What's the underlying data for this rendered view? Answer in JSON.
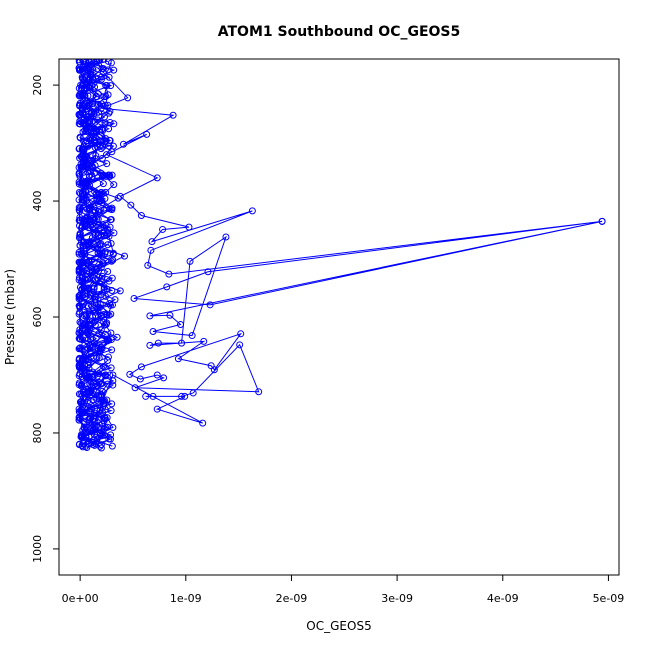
{
  "chart_data": {
    "type": "line",
    "title": "ATOM1 Southbound OC_GEOS5",
    "xlabel": "OC_GEOS5",
    "ylabel": "Pressure (mbar)",
    "xlim": [
      -2e-10,
      5.1e-09
    ],
    "ylim": [
      1045,
      155
    ],
    "y_inverted": true,
    "x_ticks": [
      0,
      1e-09,
      2e-09,
      3e-09,
      4e-09,
      5e-09
    ],
    "x_tick_labels": [
      "0e+00",
      "1e-09",
      "2e-09",
      "3e-09",
      "4e-09",
      "5e-09"
    ],
    "y_ticks": [
      200,
      400,
      600,
      800,
      1000
    ],
    "y_tick_labels": [
      "200",
      "400",
      "600",
      "800",
      "1000"
    ],
    "series_color": "#0000ff",
    "marker": "open-circle",
    "grid": false,
    "legend": "none",
    "series": [
      {
        "points": [
          [
            8e-11,
            160
          ],
          [
            4e-11,
            175
          ],
          [
            1.2e-10,
            190
          ],
          [
            6e-11,
            205
          ],
          [
            1.5e-10,
            220
          ],
          [
            2e-11,
            240
          ],
          [
            1e-10,
            255
          ],
          [
            5e-11,
            270
          ],
          [
            1.8e-10,
            290
          ],
          [
            3e-11,
            310
          ],
          [
            1.1e-10,
            330
          ],
          [
            7e-11,
            350
          ],
          [
            2.2e-10,
            370
          ],
          [
            4e-11,
            390
          ],
          [
            1.3e-10,
            410
          ],
          [
            6e-11,
            430
          ],
          [
            2.6e-10,
            450
          ],
          [
            9e-11,
            470
          ],
          [
            1.7e-10,
            490
          ],
          [
            3e-11,
            510
          ],
          [
            2.1e-10,
            530
          ],
          [
            8e-11,
            550
          ],
          [
            3.3e-10,
            570
          ],
          [
            1.2e-10,
            590
          ],
          [
            5e-11,
            610
          ],
          [
            2.4e-10,
            630
          ],
          [
            9e-11,
            650
          ],
          [
            1.6e-10,
            670
          ],
          [
            4e-11,
            690
          ],
          [
            2.8e-10,
            700
          ],
          [
            1.1e-10,
            720
          ],
          [
            6e-11,
            740
          ],
          [
            1.9e-10,
            760
          ],
          [
            1e-10,
            775
          ],
          [
            1.4e-10,
            790
          ],
          [
            2e-10,
            805
          ],
          [
            1.2e-10,
            820
          ]
        ]
      },
      {
        "points": [
          [
            5e-11,
            165
          ],
          [
            1e-10,
            180
          ],
          [
            3e-11,
            200
          ],
          [
            1.7e-10,
            215
          ],
          [
            8e-11,
            235
          ],
          [
            2.3e-10,
            255
          ],
          [
            6e-11,
            275
          ],
          [
            1.4e-10,
            295
          ],
          [
            3e-10,
            315
          ],
          [
            1e-10,
            335
          ],
          [
            2.7e-10,
            355
          ],
          [
            5e-11,
            375
          ],
          [
            3.6e-10,
            395
          ],
          [
            1.8e-10,
            415
          ],
          [
            9e-11,
            435
          ],
          [
            3.2e-10,
            455
          ],
          [
            1.3e-10,
            475
          ],
          [
            4.2e-10,
            495
          ],
          [
            2e-10,
            515
          ],
          [
            7e-11,
            535
          ],
          [
            3.8e-10,
            555
          ],
          [
            1.5e-10,
            575
          ],
          [
            2.9e-10,
            595
          ],
          [
            1e-10,
            615
          ],
          [
            3.5e-10,
            635
          ],
          [
            1.7e-10,
            655
          ],
          [
            2.6e-10,
            675
          ],
          [
            1.2e-10,
            695
          ],
          [
            3.1e-10,
            710
          ],
          [
            8e-11,
            730
          ],
          [
            2.2e-10,
            750
          ],
          [
            1.5e-10,
            770
          ],
          [
            2.1e-10,
            785
          ],
          [
            1.9e-10,
            800
          ]
        ]
      },
      {
        "points": [
          [
            9e-11,
            160
          ],
          [
            2.2e-10,
            178
          ],
          [
            4.5e-10,
            222
          ],
          [
            2e-10,
            240
          ],
          [
            8.8e-10,
            252
          ],
          [
            4.1e-10,
            302
          ],
          [
            6.3e-10,
            285
          ],
          [
            2.5e-10,
            320
          ],
          [
            7.3e-10,
            360
          ],
          [
            3.8e-10,
            392
          ],
          [
            4.8e-10,
            407
          ],
          [
            5.8e-10,
            425
          ],
          [
            1.03e-09,
            445
          ],
          [
            7.8e-10,
            449
          ],
          [
            6.8e-10,
            470
          ],
          [
            1.63e-09,
            417
          ],
          [
            6.7e-10,
            485
          ],
          [
            6.4e-10,
            511
          ],
          [
            8.4e-10,
            526
          ],
          [
            4.94e-09,
            435
          ],
          [
            1.21e-09,
            522
          ],
          [
            8.2e-10,
            548
          ],
          [
            5.1e-10,
            568
          ],
          [
            1.23e-09,
            579
          ],
          [
            4.94e-09,
            435
          ],
          [
            6.6e-10,
            598
          ],
          [
            8.5e-10,
            597
          ],
          [
            9.5e-10,
            613
          ],
          [
            6.9e-10,
            625
          ],
          [
            1.06e-09,
            632
          ],
          [
            1.38e-09,
            462
          ],
          [
            1.04e-09,
            504
          ],
          [
            9.6e-10,
            645
          ],
          [
            7.4e-10,
            645
          ],
          [
            6.6e-10,
            649
          ],
          [
            1.17e-09,
            642
          ],
          [
            9.3e-10,
            672
          ],
          [
            1.24e-09,
            684
          ],
          [
            1.27e-09,
            691
          ],
          [
            1.52e-09,
            629
          ],
          [
            5.8e-10,
            686
          ],
          [
            4.7e-10,
            699
          ],
          [
            5.7e-10,
            707
          ],
          [
            7.3e-10,
            700
          ],
          [
            7.9e-10,
            705
          ],
          [
            5.2e-10,
            722
          ],
          [
            1.69e-09,
            729
          ],
          [
            1.51e-09,
            648
          ],
          [
            1.07e-09,
            731
          ],
          [
            9.6e-10,
            737
          ],
          [
            6.2e-10,
            737
          ],
          [
            6.9e-10,
            737
          ],
          [
            9.9e-10,
            737
          ],
          [
            7.3e-10,
            759
          ],
          [
            1.16e-09,
            783
          ],
          [
            3.1e-10,
            700
          ],
          [
            1.4e-10,
            780
          ]
        ]
      }
    ],
    "dense_column": {
      "x_min": -1e-11,
      "x_max": 3.2e-10,
      "y_min": 158,
      "y_max": 822,
      "line_count": 14,
      "points_per_line": 45
    }
  }
}
